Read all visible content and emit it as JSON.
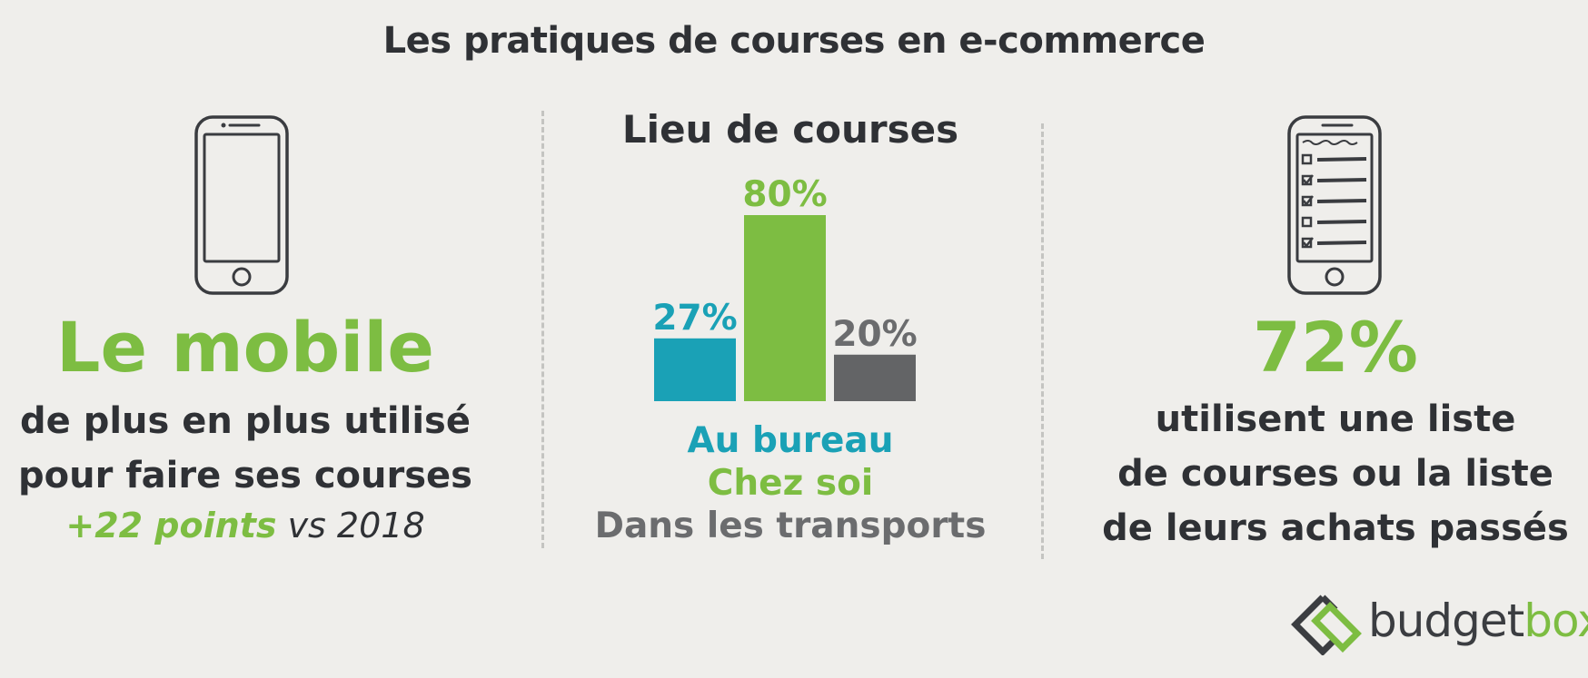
{
  "title": "Les pratiques de courses en e-commerce",
  "left": {
    "icon": "smartphone-icon",
    "headline": "Le mobile",
    "subtitle_lines": [
      "de plus en plus utilisé",
      "pour faire ses courses"
    ],
    "delta_highlight": "+22 points",
    "delta_rest": " vs 2018"
  },
  "chart_data": {
    "type": "bar",
    "title": "Lieu de courses",
    "categories": [
      "Au bureau",
      "Chez soi",
      "Dans les transports"
    ],
    "values": [
      27,
      80,
      20
    ],
    "value_labels": [
      "27%",
      "80%",
      "20%"
    ],
    "colors": [
      "#1aa1b6",
      "#7dbd42",
      "#636466"
    ],
    "label_colors": [
      "#1aa1b6",
      "#7dbd42",
      "#6b6c6e"
    ],
    "ylim": [
      0,
      80
    ],
    "grid": false,
    "legend": "bottom"
  },
  "right": {
    "icon": "checklist-phone-icon",
    "headline": "72%",
    "subtitle_lines": [
      "utilisent une liste",
      "de courses ou la liste",
      "de leurs achats passés"
    ]
  },
  "logo": {
    "icon": "budgetbox-logo-icon",
    "text_part1": "budget",
    "text_part2": "box",
    "color_dark": "#3b3d41",
    "color_green": "#7dbd42"
  }
}
